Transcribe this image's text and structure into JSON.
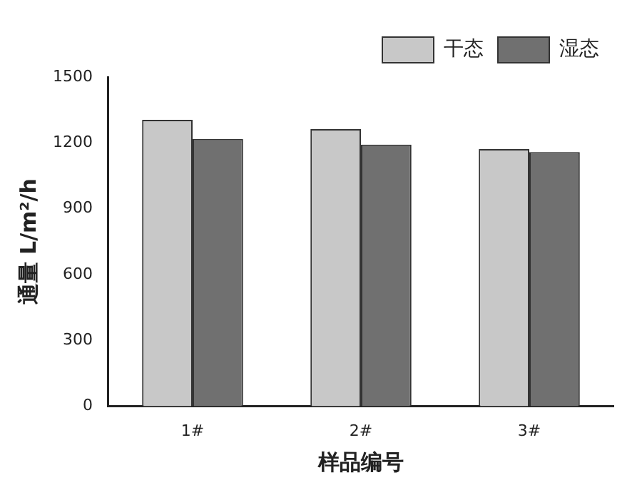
{
  "chart_data": {
    "type": "bar",
    "xlabel": "样品编号",
    "ylabel": "通量 L/m²/h",
    "categories": [
      "1#",
      "2#",
      "3#"
    ],
    "series": [
      {
        "name": "干态",
        "color": "#c8c8c8",
        "values": [
          1305,
          1263,
          1172
        ]
      },
      {
        "name": "湿态",
        "color": "#707070",
        "values": [
          1218,
          1192,
          1158
        ]
      }
    ],
    "ylim": [
      0,
      1500
    ],
    "yticks": [
      0,
      300,
      600,
      900,
      1200,
      1500
    ],
    "grid": false,
    "legend": "top right"
  }
}
